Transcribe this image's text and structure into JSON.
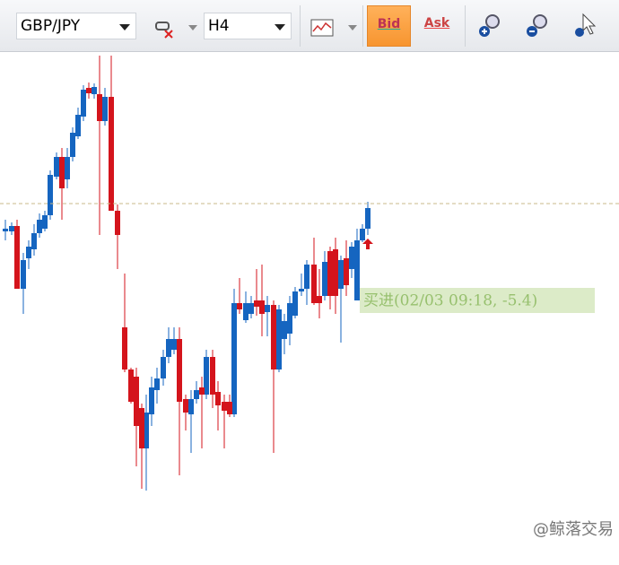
{
  "toolbar": {
    "symbol": "GBP/JPY",
    "timeframe": "H4",
    "bid": "Bid",
    "ask": "Ask"
  },
  "chart": {
    "trade_label": "买进(02/03 09:18, -5.4)"
  },
  "watermark": "@鲸落交易"
}
